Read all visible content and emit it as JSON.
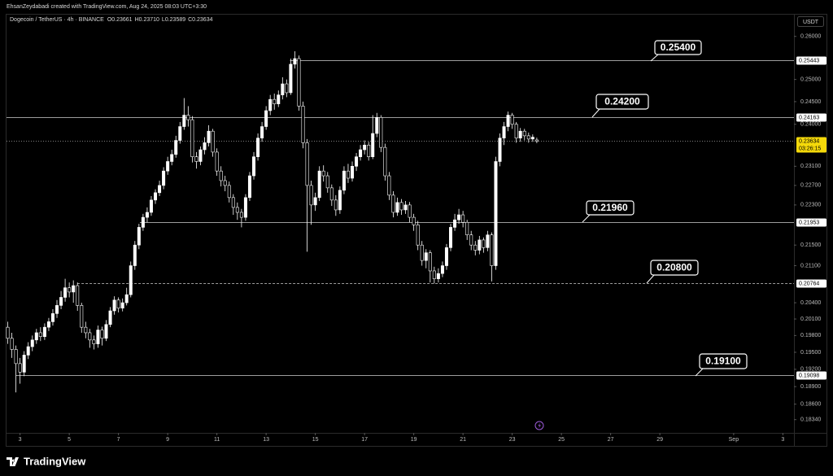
{
  "header": {
    "credit": "EhsanZeydabadi created with TradingView.com, Aug 24, 2025 08:03 UTC+3:30",
    "logo": "TradingView"
  },
  "chart_data": {
    "type": "candlestick",
    "title": "Dogecoin / TetherUS · 4h · BINANCE",
    "ohlc_text": [
      "O0.23661",
      "H0.23710",
      "L0.23589",
      "C0.23634"
    ],
    "currency": "USDT",
    "log_scale": true,
    "up_color": "#ffffff",
    "down_color": "#000000",
    "wick_color": "#ffffff",
    "x": [
      2.5,
      2.667,
      2.833,
      3,
      3.167,
      3.333,
      3.5,
      3.667,
      3.833,
      4,
      4.167,
      4.333,
      4.5,
      4.667,
      4.833,
      5,
      5.167,
      5.333,
      5.5,
      5.667,
      5.833,
      6,
      6.167,
      6.333,
      6.5,
      6.667,
      6.833,
      7,
      7.167,
      7.333,
      7.5,
      7.667,
      7.833,
      8,
      8.167,
      8.333,
      8.5,
      8.667,
      8.833,
      9,
      9.167,
      9.333,
      9.5,
      9.667,
      9.833,
      10,
      10.167,
      10.333,
      10.5,
      10.667,
      10.833,
      11,
      11.167,
      11.333,
      11.5,
      11.667,
      11.833,
      12,
      12.167,
      12.333,
      12.5,
      12.667,
      12.833,
      13,
      13.167,
      13.333,
      13.5,
      13.667,
      13.833,
      14,
      14.167,
      14.333,
      14.5,
      14.667,
      14.833,
      15,
      15.167,
      15.333,
      15.5,
      15.667,
      15.833,
      16,
      16.167,
      16.333,
      16.5,
      16.667,
      16.833,
      17,
      17.167,
      17.333,
      17.5,
      17.667,
      17.833,
      18,
      18.167,
      18.333,
      18.5,
      18.667,
      18.833,
      19,
      19.167,
      19.333,
      19.5,
      19.667,
      19.833,
      20,
      20.167,
      20.333,
      20.5,
      20.667,
      20.833,
      21,
      21.167,
      21.333,
      21.5,
      21.667,
      21.833,
      22,
      22.167,
      22.333,
      22.5,
      22.667,
      22.833,
      23,
      23.167,
      23.333,
      23.5,
      23.667,
      23.833,
      24
    ],
    "open": [
      0.1995,
      0.1975,
      0.1955,
      0.193,
      0.1915,
      0.1945,
      0.196,
      0.1972,
      0.1985,
      0.1978,
      0.1995,
      0.2005,
      0.202,
      0.2035,
      0.205,
      0.2068,
      0.206,
      0.2072,
      0.2035,
      0.1995,
      0.1985,
      0.1972,
      0.1965,
      0.199,
      0.1975,
      0.2,
      0.2025,
      0.2045,
      0.203,
      0.204,
      0.2055,
      0.211,
      0.215,
      0.2185,
      0.2205,
      0.2215,
      0.224,
      0.2255,
      0.227,
      0.23,
      0.232,
      0.2335,
      0.2365,
      0.2395,
      0.242,
      0.241,
      0.233,
      0.232,
      0.2345,
      0.236,
      0.2385,
      0.234,
      0.23,
      0.228,
      0.227,
      0.2245,
      0.2225,
      0.2215,
      0.2205,
      0.2245,
      0.229,
      0.233,
      0.237,
      0.2395,
      0.243,
      0.2455,
      0.2445,
      0.2465,
      0.249,
      0.247,
      0.2535,
      0.2548,
      0.244,
      0.236,
      0.227,
      0.223,
      0.2245,
      0.23,
      0.229,
      0.2265,
      0.224,
      0.222,
      0.226,
      0.23,
      0.2285,
      0.231,
      0.233,
      0.2345,
      0.2355,
      0.233,
      0.238,
      0.2415,
      0.235,
      0.229,
      0.225,
      0.2215,
      0.2235,
      0.222,
      0.223,
      0.2205,
      0.219,
      0.215,
      0.212,
      0.2135,
      0.21,
      0.2085,
      0.2095,
      0.211,
      0.2145,
      0.2185,
      0.22,
      0.221,
      0.2195,
      0.217,
      0.215,
      0.214,
      0.216,
      0.2145,
      0.217,
      0.211,
      0.232,
      0.237,
      0.2395,
      0.242,
      0.24,
      0.237,
      0.2385,
      0.2375,
      0.2368,
      0.2366
    ],
    "high": [
      0.2005,
      0.1985,
      0.1962,
      0.194,
      0.1952,
      0.1968,
      0.198,
      0.1992,
      0.1995,
      0.2002,
      0.2012,
      0.2028,
      0.2045,
      0.2062,
      0.2085,
      0.2078,
      0.2082,
      0.2078,
      0.204,
      0.2005,
      0.1992,
      0.198,
      0.1998,
      0.1996,
      0.2008,
      0.2032,
      0.2052,
      0.205,
      0.2048,
      0.2068,
      0.2118,
      0.2158,
      0.2192,
      0.2212,
      0.2225,
      0.2248,
      0.2262,
      0.228,
      0.2308,
      0.233,
      0.2345,
      0.2375,
      0.2405,
      0.2458,
      0.244,
      0.2418,
      0.234,
      0.2352,
      0.2372,
      0.2398,
      0.239,
      0.2348,
      0.231,
      0.229,
      0.2278,
      0.2252,
      0.2235,
      0.2222,
      0.2252,
      0.2298,
      0.234,
      0.238,
      0.2405,
      0.244,
      0.2465,
      0.2468,
      0.2475,
      0.2505,
      0.25,
      0.2548,
      0.2565,
      0.2555,
      0.245,
      0.2368,
      0.228,
      0.2255,
      0.231,
      0.2312,
      0.2298,
      0.2272,
      0.225,
      0.2268,
      0.231,
      0.2315,
      0.232,
      0.2338,
      0.2355,
      0.2365,
      0.2362,
      0.242,
      0.2425,
      0.242,
      0.2358,
      0.2298,
      0.2258,
      0.2245,
      0.2242,
      0.2238,
      0.2236,
      0.2212,
      0.2198,
      0.2158,
      0.2142,
      0.214,
      0.2108,
      0.2105,
      0.2118,
      0.2152,
      0.2192,
      0.2212,
      0.2222,
      0.2218,
      0.22,
      0.2178,
      0.2158,
      0.2168,
      0.2165,
      0.2178,
      0.2175,
      0.233,
      0.238,
      0.2405,
      0.2428,
      0.2425,
      0.2405,
      0.2392,
      0.239,
      0.2382,
      0.2378,
      0.2371
    ],
    "low": [
      0.1965,
      0.194,
      0.188,
      0.1895,
      0.1908,
      0.1938,
      0.1952,
      0.1965,
      0.197,
      0.1972,
      0.1988,
      0.1998,
      0.2012,
      0.2028,
      0.2042,
      0.205,
      0.204,
      0.2025,
      0.1985,
      0.1975,
      0.1958,
      0.1955,
      0.1958,
      0.1962,
      0.197,
      0.1995,
      0.2018,
      0.2022,
      0.2024,
      0.2035,
      0.205,
      0.2102,
      0.2142,
      0.2178,
      0.2195,
      0.2208,
      0.2232,
      0.2248,
      0.2262,
      0.2292,
      0.2312,
      0.2328,
      0.2358,
      0.2388,
      0.2395,
      0.2318,
      0.2305,
      0.2312,
      0.2335,
      0.2352,
      0.233,
      0.229,
      0.2268,
      0.2258,
      0.2235,
      0.221,
      0.22,
      0.2185,
      0.2198,
      0.2238,
      0.2282,
      0.2322,
      0.2362,
      0.2388,
      0.242,
      0.2432,
      0.2438,
      0.2455,
      0.246,
      0.2465,
      0.2525,
      0.243,
      0.2348,
      0.2137,
      0.219,
      0.2218,
      0.2238,
      0.2278,
      0.2255,
      0.2228,
      0.2208,
      0.2212,
      0.2252,
      0.2275,
      0.2278,
      0.23,
      0.2322,
      0.2335,
      0.2322,
      0.2325,
      0.2372,
      0.234,
      0.228,
      0.224,
      0.2205,
      0.2208,
      0.221,
      0.2212,
      0.2195,
      0.2178,
      0.214,
      0.211,
      0.2105,
      0.2078,
      0.2076,
      0.2078,
      0.2088,
      0.2102,
      0.2138,
      0.2178,
      0.2192,
      0.2185,
      0.216,
      0.214,
      0.213,
      0.2132,
      0.2135,
      0.2138,
      0.208,
      0.2102,
      0.231,
      0.2355,
      0.2385,
      0.239,
      0.236,
      0.2362,
      0.2365,
      0.236,
      0.2362,
      0.2359
    ],
    "close": [
      0.1975,
      0.1955,
      0.193,
      0.1915,
      0.1945,
      0.196,
      0.1972,
      0.1985,
      0.1978,
      0.1995,
      0.2005,
      0.202,
      0.2035,
      0.205,
      0.2068,
      0.206,
      0.2072,
      0.2035,
      0.1995,
      0.1985,
      0.1972,
      0.1965,
      0.199,
      0.1975,
      0.2,
      0.2025,
      0.2045,
      0.203,
      0.204,
      0.2055,
      0.211,
      0.215,
      0.2185,
      0.2205,
      0.2215,
      0.224,
      0.2255,
      0.227,
      0.23,
      0.232,
      0.2335,
      0.2365,
      0.2395,
      0.242,
      0.241,
      0.233,
      0.232,
      0.2345,
      0.236,
      0.2385,
      0.234,
      0.23,
      0.228,
      0.227,
      0.2245,
      0.2225,
      0.2215,
      0.2205,
      0.2245,
      0.229,
      0.233,
      0.237,
      0.2395,
      0.243,
      0.2455,
      0.2445,
      0.2465,
      0.249,
      0.247,
      0.2535,
      0.2548,
      0.244,
      0.236,
      0.227,
      0.223,
      0.2245,
      0.23,
      0.229,
      0.2265,
      0.224,
      0.222,
      0.226,
      0.23,
      0.2285,
      0.231,
      0.233,
      0.2345,
      0.2355,
      0.233,
      0.238,
      0.2415,
      0.235,
      0.229,
      0.225,
      0.2215,
      0.2235,
      0.222,
      0.223,
      0.2205,
      0.219,
      0.215,
      0.212,
      0.2135,
      0.21,
      0.2085,
      0.2095,
      0.211,
      0.2145,
      0.2185,
      0.22,
      0.221,
      0.2195,
      0.217,
      0.215,
      0.214,
      0.216,
      0.2145,
      0.217,
      0.211,
      0.232,
      0.237,
      0.2395,
      0.242,
      0.24,
      0.237,
      0.2385,
      0.2375,
      0.2368,
      0.2372,
      0.23634
    ],
    "xlim": [
      2.45,
      34.45
    ],
    "xticks": [
      3,
      5,
      7,
      9,
      11,
      13,
      15,
      17,
      19,
      21,
      23,
      25,
      27,
      29,
      {
        "value": 32,
        "label": "Sep"
      },
      {
        "value": 34,
        "label": "3"
      }
    ],
    "ylim": [
      0.1812,
      0.2652
    ],
    "yticks": [
      {
        "value": 0.26,
        "label": "0.26000"
      },
      {
        "value": 0.25,
        "label": "0.25000"
      },
      {
        "value": 0.245,
        "label": "0.24500"
      },
      {
        "value": 0.24,
        "label": "0.24000"
      },
      {
        "value": 0.231,
        "label": "0.23100"
      },
      {
        "value": 0.227,
        "label": "0.22700"
      },
      {
        "value": 0.223,
        "label": "0.22300"
      },
      {
        "value": 0.215,
        "label": "0.21500"
      },
      {
        "value": 0.211,
        "label": "0.21100"
      },
      {
        "value": 0.204,
        "label": "0.20400"
      },
      {
        "value": 0.201,
        "label": "0.20100"
      },
      {
        "value": 0.198,
        "label": "0.19800"
      },
      {
        "value": 0.195,
        "label": "0.19500"
      },
      {
        "value": 0.192,
        "label": "0.19200"
      },
      {
        "value": 0.189,
        "label": "0.18900"
      },
      {
        "value": 0.186,
        "label": "0.18600"
      },
      {
        "value": 0.1834,
        "label": "0.18340"
      }
    ],
    "price_lines": [
      {
        "value": 0.25443,
        "label": "0.25443",
        "from": 13.97,
        "style": "solid"
      },
      {
        "value": 0.24163,
        "label": "0.24163",
        "from": 2.45,
        "style": "solid"
      },
      {
        "value": 0.21953,
        "label": "0.21953",
        "from": 7.87,
        "style": "solid"
      },
      {
        "value": 0.20764,
        "label": "0.20764",
        "from": 5.33,
        "style": "dashed"
      },
      {
        "value": 0.19098,
        "label": "0.19098",
        "from": 2.83,
        "style": "solid"
      }
    ],
    "current_price": {
      "value": 0.23634,
      "label": "0.23634",
      "countdown": "03:26:15",
      "color": "#f5d90a"
    },
    "annotations": [
      "0.25400",
      "0.24200",
      "0.21960",
      "0.20800",
      "0.19100"
    ]
  }
}
